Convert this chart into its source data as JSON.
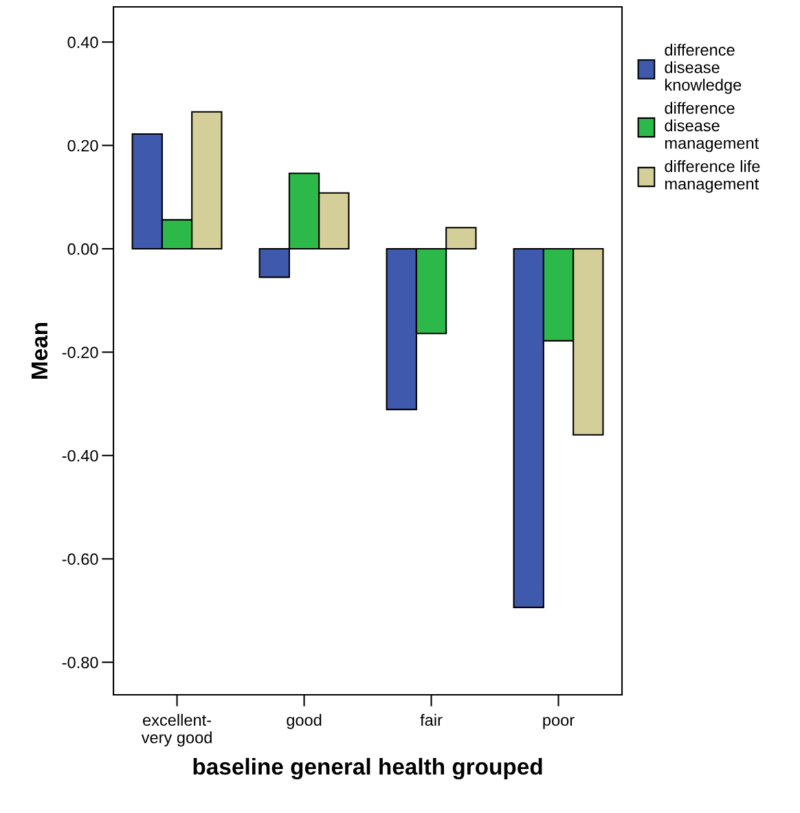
{
  "chart_data": {
    "type": "bar",
    "xlabel": "baseline general health grouped",
    "ylabel": "Mean",
    "categories": [
      "excellent-\nvery good",
      "good",
      "fair",
      "poor"
    ],
    "series": [
      {
        "name": "difference\ndisease\nknowledge",
        "color": "#3f5aad",
        "values": [
          0.222,
          -0.055,
          -0.311,
          -0.694
        ]
      },
      {
        "name": "difference\ndisease\nmanagement",
        "color": "#2db84a",
        "values": [
          0.056,
          0.146,
          -0.164,
          -0.178
        ]
      },
      {
        "name": "difference life\nmanagement",
        "color": "#d4cf98",
        "values": [
          0.265,
          0.108,
          0.041,
          -0.36
        ]
      }
    ],
    "ylim": [
      -0.863,
      0.468
    ],
    "yticks": [
      {
        "value": -0.8,
        "label": "-0.80"
      },
      {
        "value": -0.6,
        "label": "-0.60"
      },
      {
        "value": -0.4,
        "label": "-0.40"
      },
      {
        "value": -0.2,
        "label": "-0.20"
      },
      {
        "value": 0.0,
        "label": "0.00"
      },
      {
        "value": 0.2,
        "label": "0.20"
      },
      {
        "value": 0.4,
        "label": "0.40"
      }
    ],
    "grid": false,
    "legend": "right"
  }
}
